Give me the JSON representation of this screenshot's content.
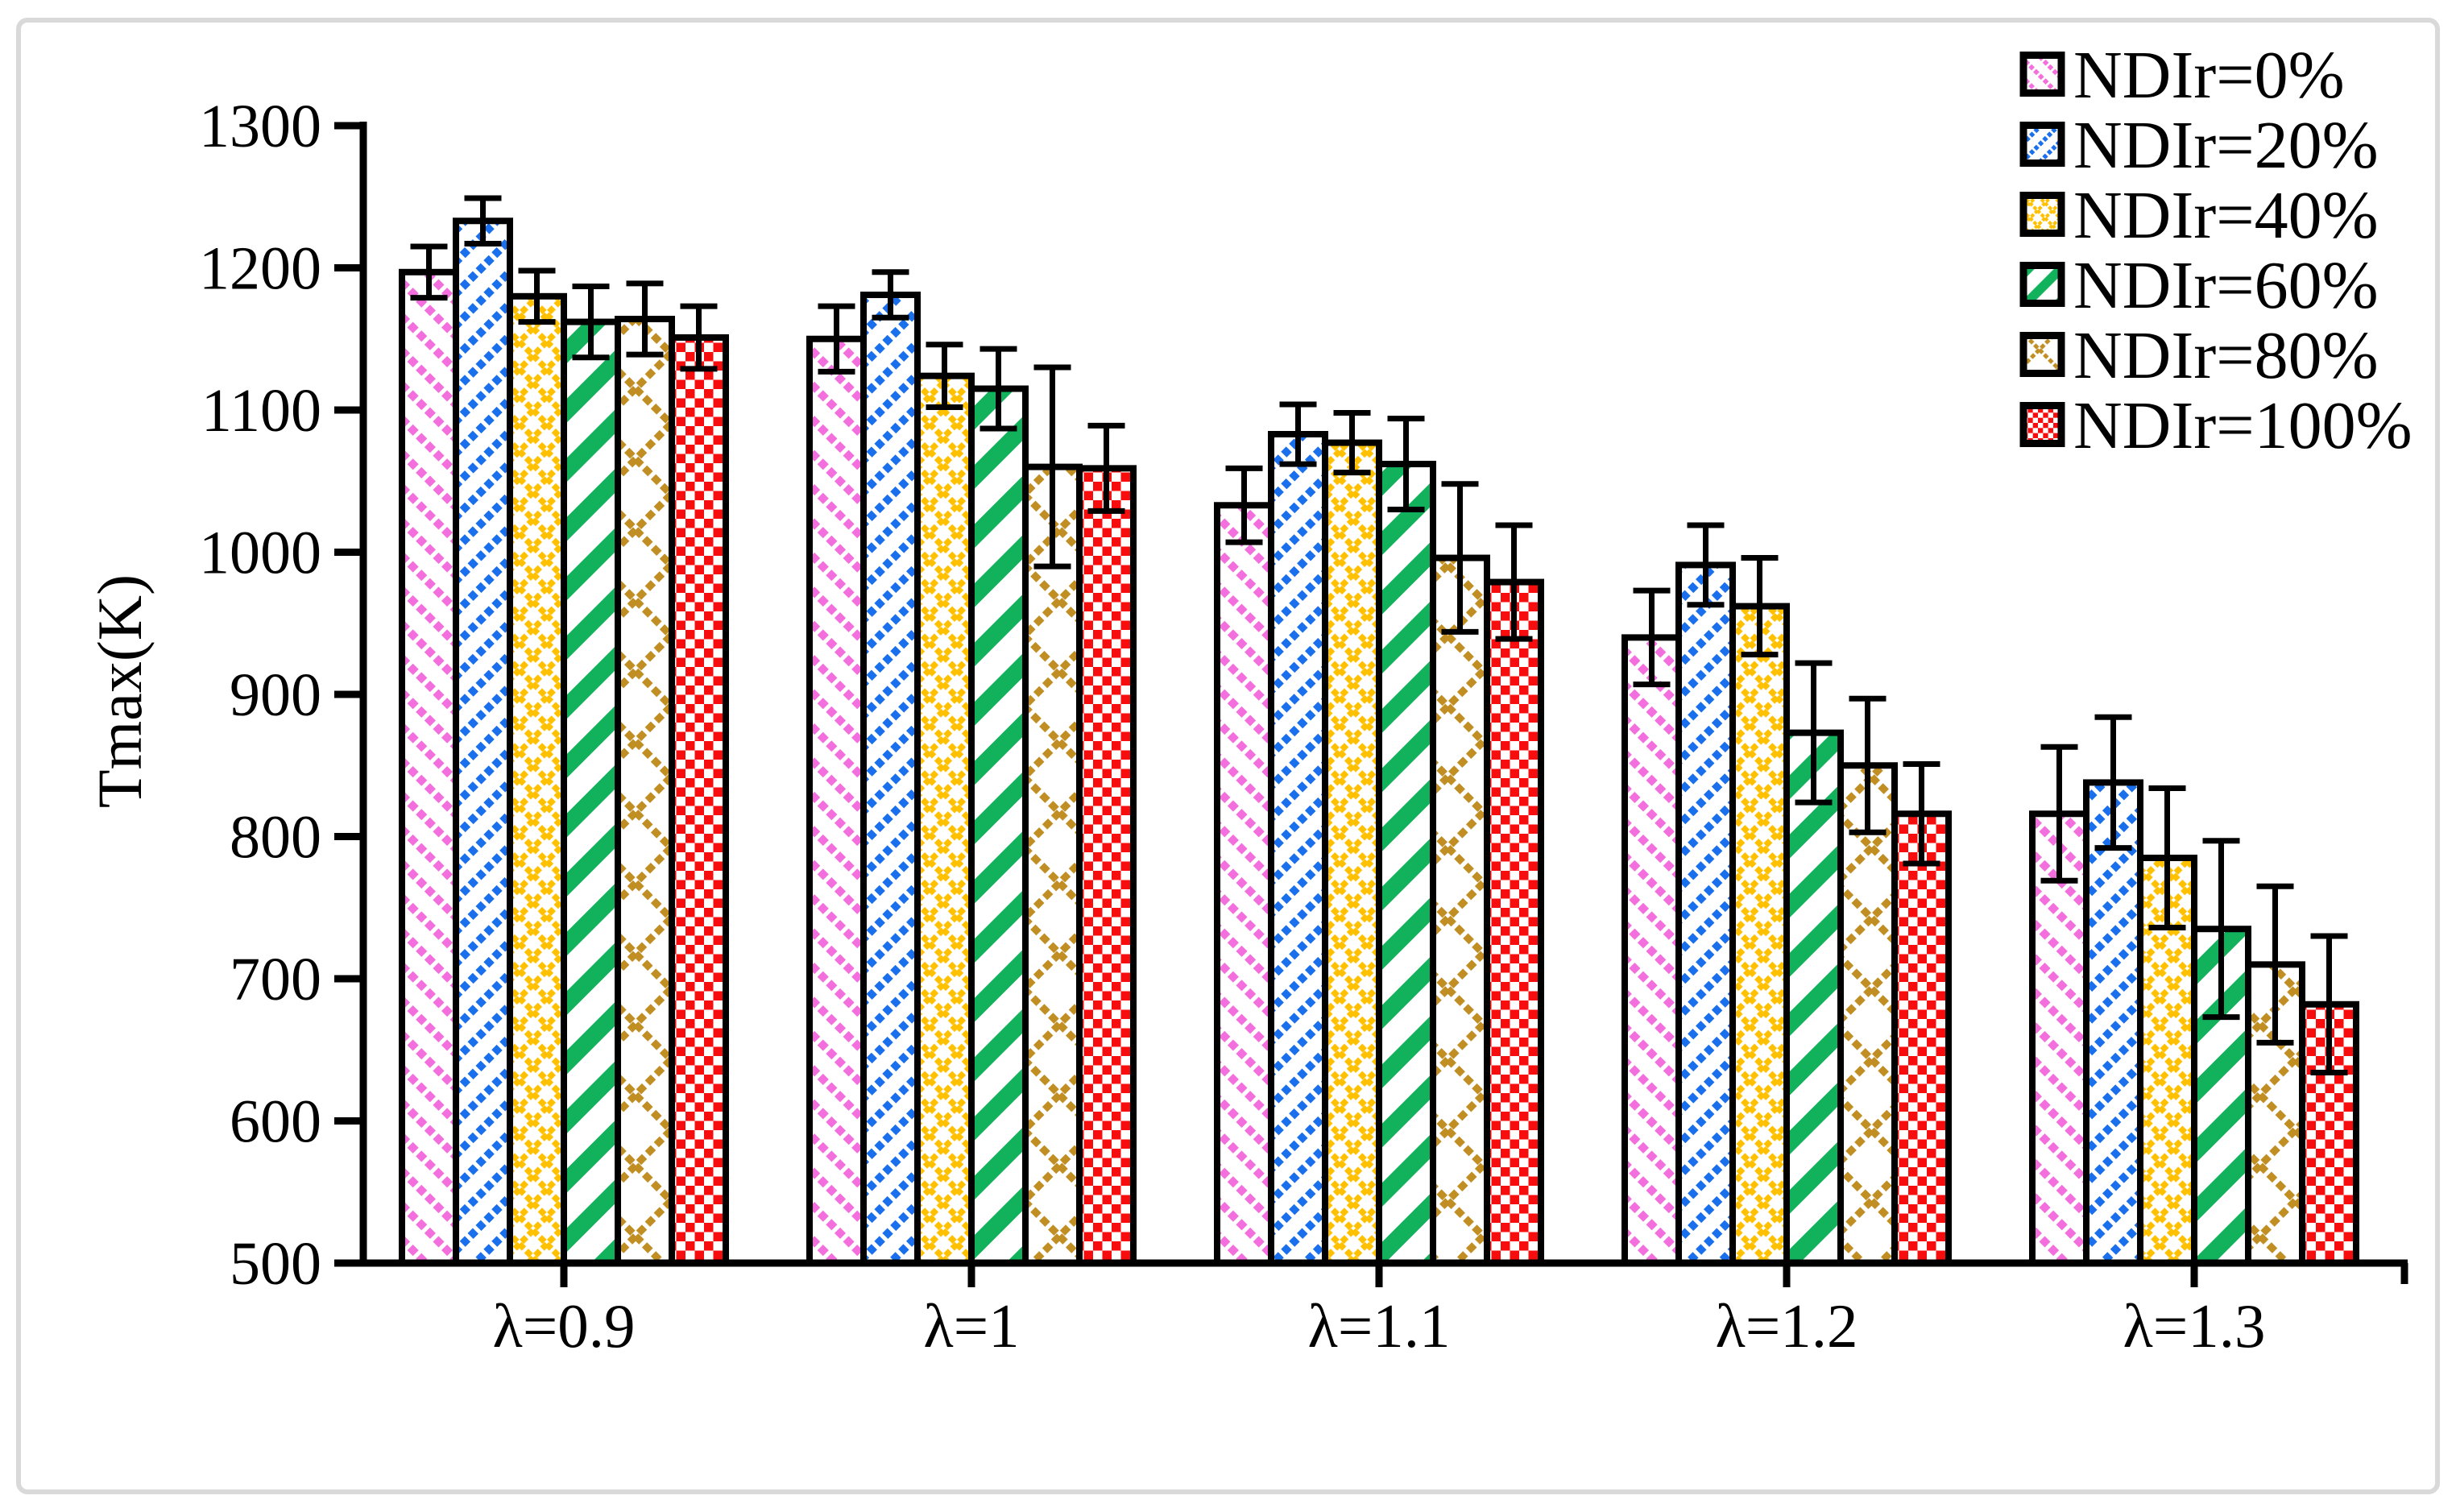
{
  "chart_data": {
    "type": "bar",
    "title": "",
    "xlabel": "",
    "ylabel": "Tmax(K)",
    "ylim": [
      500,
      1300
    ],
    "ytick_step": 100,
    "yticks": [
      1300,
      1200,
      1100,
      1000,
      900,
      800,
      700,
      600,
      500
    ],
    "categories": [
      "λ=0.9",
      "λ=1",
      "λ=1.1",
      "λ=1.2",
      "λ=1.3"
    ],
    "grid": false,
    "error_bars": true,
    "legend_position": "top-right",
    "bar_outline_color": "#000000",
    "background_color": "#ffffff",
    "frame_border_color": "#d9d9d9",
    "series": [
      {
        "name": "NDIr=0%",
        "color": "#f46fde",
        "pattern": "pink-dashed-diagonal-down",
        "values": [
          1197,
          1150,
          1033,
          940,
          816
        ],
        "errors": [
          18,
          23,
          26,
          33,
          47
        ]
      },
      {
        "name": "NDIr=20%",
        "color": "#1a6fec",
        "pattern": "blue-dashed-diagonal-up",
        "values": [
          1233,
          1181,
          1083,
          991,
          838
        ],
        "errors": [
          16,
          16,
          21,
          28,
          46
        ]
      },
      {
        "name": "NDIr=40%",
        "color": "#ffc000",
        "pattern": "gold-dotted-diamond",
        "values": [
          1180,
          1124,
          1077,
          962,
          785
        ],
        "errors": [
          18,
          22,
          21,
          34,
          49
        ]
      },
      {
        "name": "NDIr=60%",
        "color": "#12b25c",
        "pattern": "green-bold-diagonal-up",
        "values": [
          1162,
          1115,
          1062,
          873,
          735
        ],
        "errors": [
          25,
          28,
          32,
          49,
          62
        ]
      },
      {
        "name": "NDIr=80%",
        "color": "#c08e22",
        "pattern": "bronze-diamond-lattice",
        "values": [
          1164,
          1060,
          996,
          850,
          710
        ],
        "errors": [
          25,
          70,
          52,
          47,
          55
        ]
      },
      {
        "name": "NDIr=100%",
        "color": "#f70d0d",
        "pattern": "red-checker",
        "values": [
          1151,
          1059,
          979,
          816,
          682
        ],
        "errors": [
          22,
          30,
          40,
          35,
          48
        ]
      }
    ]
  }
}
